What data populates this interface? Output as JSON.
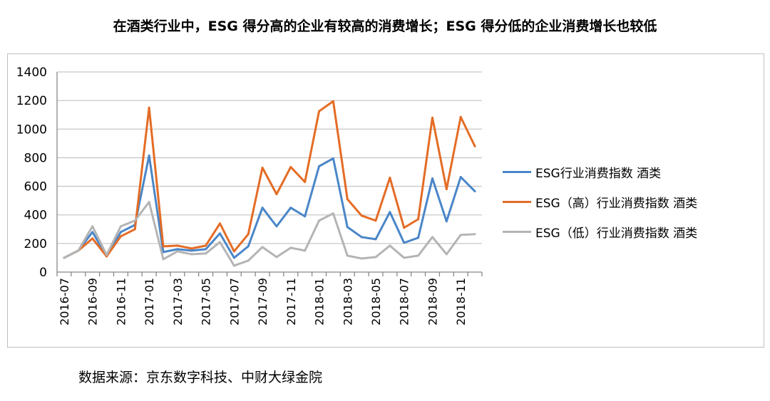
{
  "chart_data": {
    "type": "line",
    "title": "在酒类行业中，ESG 得分高的企业有较高的消费增长；ESG 得分低的企业消费增长也较低",
    "xlabel": "",
    "ylabel": "",
    "ylim": [
      0,
      1400
    ],
    "yticks": [
      "0",
      "200",
      "400",
      "600",
      "800",
      "1000",
      "1200",
      "1400"
    ],
    "x": [
      "2016-07",
      "2016-08",
      "2016-09",
      "2016-10",
      "2016-11",
      "2016-12",
      "2017-01",
      "2017-02",
      "2017-03",
      "2017-04",
      "2017-05",
      "2017-06",
      "2017-07",
      "2017-08",
      "2017-09",
      "2017-10",
      "2017-11",
      "2017-12",
      "2018-01",
      "2018-02",
      "2018-03",
      "2018-04",
      "2018-05",
      "2018-06",
      "2018-07",
      "2018-08",
      "2018-09",
      "2018-10",
      "2018-11",
      "2018-12"
    ],
    "legend_position": "right",
    "grid": true,
    "series": [
      {
        "name": "ESG行业消费指数 酒类",
        "color": "#4a86c8",
        "values": [
          100,
          150,
          280,
          110,
          280,
          330,
          815,
          140,
          160,
          150,
          160,
          270,
          100,
          180,
          450,
          320,
          450,
          390,
          740,
          795,
          315,
          245,
          230,
          420,
          205,
          240,
          655,
          355,
          665,
          565
        ]
      },
      {
        "name": "ESG（高）行业消费指数 酒类",
        "color": "#e46c25",
        "values": [
          100,
          150,
          235,
          110,
          250,
          300,
          1150,
          180,
          185,
          165,
          185,
          340,
          145,
          265,
          730,
          545,
          735,
          630,
          1125,
          1195,
          510,
          395,
          360,
          660,
          310,
          370,
          1080,
          580,
          1085,
          880
        ]
      },
      {
        "name": "ESG（低）行业消费指数 酒类",
        "color": "#b4b4b4",
        "values": [
          100,
          150,
          320,
          120,
          320,
          360,
          490,
          90,
          145,
          125,
          130,
          210,
          45,
          80,
          175,
          105,
          170,
          150,
          360,
          410,
          115,
          95,
          105,
          185,
          100,
          115,
          245,
          125,
          260,
          265
        ]
      }
    ]
  },
  "source": "数据来源：京东数字科技、中财大绿金院"
}
